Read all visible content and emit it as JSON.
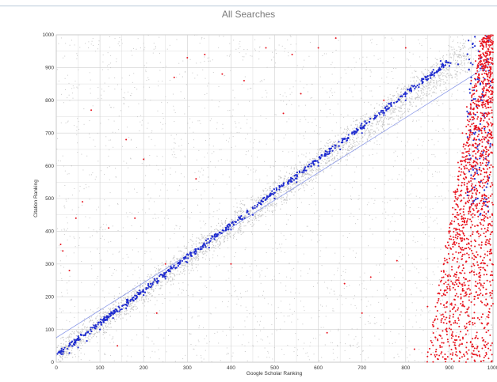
{
  "chart_data": {
    "type": "scatter",
    "title": "All Searches",
    "xlabel": "Google Scholar Ranking",
    "ylabel": "Citation Ranking",
    "xlim": [
      0,
      1000
    ],
    "ylim": [
      0,
      1000
    ],
    "x_ticks": [
      "0",
      "100",
      "200",
      "300",
      "400",
      "500",
      "600",
      "700",
      "800",
      "900",
      "1000"
    ],
    "y_ticks": [
      "0",
      "100",
      "200",
      "300",
      "400",
      "500",
      "600",
      "700",
      "800",
      "900",
      "1000"
    ],
    "grid": true,
    "colors": {
      "background_points": "#c8c8c8",
      "trend_points": "#1f2ccf",
      "outlier_points": "#e8141e",
      "fit_line": "#7f8fe6",
      "grid": "#cfcfcf"
    },
    "fit_line": {
      "x": [
        0,
        1000
      ],
      "y": [
        75,
        915
      ]
    },
    "series": [
      {
        "color": "gray",
        "description_points": [
          [
            20,
            40
          ],
          [
            100,
            120
          ],
          [
            200,
            210
          ],
          [
            300,
            300
          ],
          [
            400,
            400
          ],
          [
            500,
            505
          ],
          [
            600,
            600
          ],
          [
            700,
            700
          ],
          [
            800,
            800
          ],
          [
            900,
            890
          ]
        ]
      },
      {
        "color": "blue",
        "points": [
          [
            5,
            30
          ],
          [
            15,
            25
          ],
          [
            30,
            28
          ],
          [
            50,
            45
          ],
          [
            70,
            65
          ],
          [
            100,
            100
          ],
          [
            130,
            135
          ],
          [
            160,
            165
          ],
          [
            200,
            205
          ],
          [
            250,
            255
          ],
          [
            300,
            305
          ],
          [
            350,
            350
          ],
          [
            400,
            405
          ],
          [
            450,
            450
          ],
          [
            500,
            500
          ],
          [
            550,
            550
          ],
          [
            600,
            600
          ],
          [
            650,
            650
          ],
          [
            700,
            700
          ],
          [
            750,
            755
          ],
          [
            800,
            800
          ],
          [
            830,
            840
          ],
          [
            860,
            880
          ],
          [
            880,
            920
          ],
          [
            900,
            905
          ],
          [
            920,
            910
          ],
          [
            950,
            870
          ],
          [
            960,
            600
          ],
          [
            965,
            500
          ],
          [
            970,
            450
          ],
          [
            955,
            700
          ],
          [
            975,
            800
          ],
          [
            985,
            920
          ],
          [
            990,
            890
          ],
          [
            945,
            620
          ],
          [
            958,
            560
          ],
          [
            968,
            680
          ],
          [
            980,
            760
          ]
        ]
      },
      {
        "color": "red",
        "points": [
          [
            10,
            360
          ],
          [
            15,
            340
          ],
          [
            30,
            280
          ],
          [
            45,
            440
          ],
          [
            60,
            490
          ],
          [
            80,
            770
          ],
          [
            120,
            410
          ],
          [
            140,
            50
          ],
          [
            160,
            680
          ],
          [
            180,
            440
          ],
          [
            200,
            620
          ],
          [
            230,
            150
          ],
          [
            250,
            300
          ],
          [
            270,
            870
          ],
          [
            300,
            930
          ],
          [
            320,
            560
          ],
          [
            340,
            940
          ],
          [
            380,
            880
          ],
          [
            400,
            300
          ],
          [
            430,
            860
          ],
          [
            480,
            960
          ],
          [
            520,
            760
          ],
          [
            540,
            940
          ],
          [
            560,
            820
          ],
          [
            600,
            960
          ],
          [
            620,
            90
          ],
          [
            640,
            990
          ],
          [
            660,
            240
          ],
          [
            700,
            150
          ],
          [
            720,
            260
          ],
          [
            750,
            800
          ],
          [
            780,
            310
          ],
          [
            800,
            960
          ],
          [
            820,
            40
          ],
          [
            850,
            170
          ],
          [
            880,
            80
          ],
          [
            860,
            60
          ],
          [
            870,
            140
          ],
          [
            880,
            220
          ],
          [
            890,
            310
          ],
          [
            900,
            400
          ],
          [
            905,
            180
          ],
          [
            910,
            520
          ],
          [
            915,
            260
          ],
          [
            920,
            610
          ],
          [
            925,
            350
          ],
          [
            930,
            700
          ],
          [
            935,
            430
          ],
          [
            940,
            780
          ],
          [
            945,
            520
          ],
          [
            950,
            860
          ],
          [
            955,
            610
          ],
          [
            960,
            920
          ],
          [
            965,
            690
          ],
          [
            970,
            980
          ],
          [
            975,
            760
          ],
          [
            980,
            990
          ],
          [
            985,
            830
          ],
          [
            990,
            950
          ],
          [
            995,
            880
          ],
          [
            900,
            50
          ],
          [
            910,
            120
          ],
          [
            920,
            200
          ],
          [
            930,
            280
          ],
          [
            940,
            360
          ],
          [
            950,
            450
          ],
          [
            960,
            540
          ],
          [
            970,
            630
          ],
          [
            980,
            720
          ],
          [
            990,
            810
          ],
          [
            995,
            700
          ],
          [
            985,
            600
          ],
          [
            975,
            500
          ],
          [
            965,
            400
          ],
          [
            955,
            300
          ],
          [
            945,
            200
          ],
          [
            935,
            110
          ],
          [
            925,
            30
          ],
          [
            915,
            80
          ],
          [
            905,
            10
          ],
          [
            892,
            100
          ],
          [
            897,
            250
          ],
          [
            908,
            330
          ],
          [
            918,
            450
          ],
          [
            928,
            540
          ],
          [
            938,
            620
          ],
          [
            948,
            710
          ],
          [
            958,
            790
          ],
          [
            968,
            870
          ],
          [
            978,
            940
          ],
          [
            988,
            990
          ],
          [
            998,
            970
          ]
        ]
      }
    ]
  }
}
